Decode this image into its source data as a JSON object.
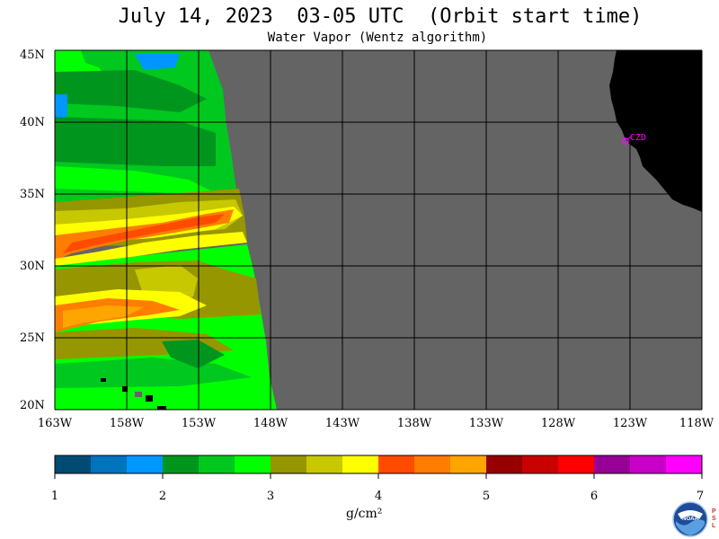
{
  "title": "July 14, 2023  03-05 UTC  (Orbit start time)",
  "subtitle": "Water Vapor (Wentz algorithm)",
  "map": {
    "lat_labels": [
      "45N",
      "40N",
      "35N",
      "30N",
      "25N",
      "20N"
    ],
    "lon_labels": [
      "163W",
      "158W",
      "153W",
      "148W",
      "143W",
      "138W",
      "133W",
      "128W",
      "123W",
      "118W"
    ],
    "station_label": "CZD",
    "colors": {
      "no_data": "#646464",
      "land": "#000000",
      "grid": "#000000",
      "station": "#ff00ff"
    }
  },
  "colorbar": {
    "tick_labels": [
      "1",
      "2",
      "3",
      "4",
      "5",
      "6",
      "7"
    ],
    "units": "g/cm²",
    "colors": [
      "#004b73",
      "#0073bd",
      "#0096ff",
      "#00961e",
      "#00c81e",
      "#00ff00",
      "#969600",
      "#c8c800",
      "#ffff00",
      "#ff4b00",
      "#ff7d00",
      "#ffa500",
      "#960000",
      "#c80000",
      "#ff0000",
      "#960096",
      "#c800c8",
      "#ff00ff"
    ]
  },
  "logo": {
    "text": "NOAA",
    "side_text": "PSL"
  }
}
